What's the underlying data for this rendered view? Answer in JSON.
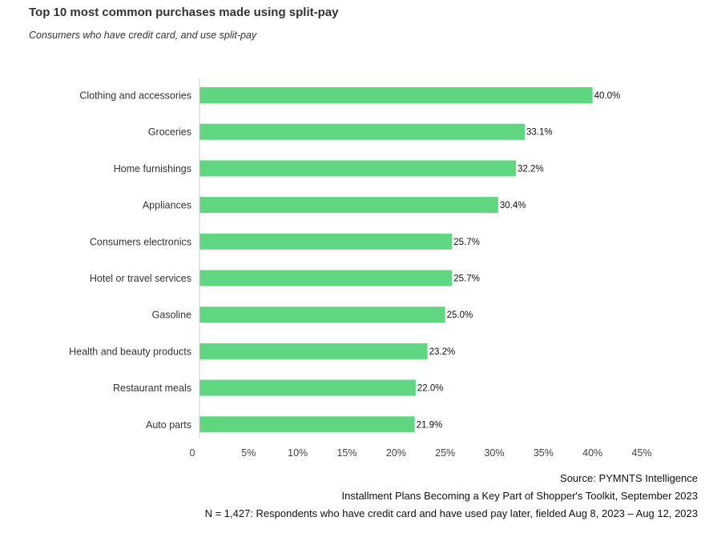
{
  "header": {
    "title": "Top 10 most common purchases made using split-pay",
    "subtitle": "Consumers who have credit card, and use split-pay"
  },
  "chart_data": {
    "type": "bar",
    "orientation": "horizontal",
    "categories": [
      "Clothing and accessories",
      "Groceries",
      "Home furnishings",
      "Appliances",
      "Consumers electronics",
      "Hotel or travel services",
      "Gasoline",
      "Health and beauty products",
      "Restaurant meals",
      "Auto parts"
    ],
    "values": [
      40.0,
      33.1,
      32.2,
      30.4,
      25.7,
      25.7,
      25.0,
      23.2,
      22.0,
      21.9
    ],
    "value_labels": [
      "40.0%",
      "33.1%",
      "32.2%",
      "30.4%",
      "25.7%",
      "25.7%",
      "25.0%",
      "23.2%",
      "22.0%",
      "21.9%"
    ],
    "x_ticks": [
      0,
      5,
      10,
      15,
      20,
      25,
      30,
      35,
      40,
      45
    ],
    "x_tick_labels": [
      "0",
      "5%",
      "10%",
      "15%",
      "20%",
      "25%",
      "30%",
      "35%",
      "40%",
      "45%"
    ],
    "xlim": [
      0,
      45
    ],
    "grid": false,
    "bar_color": "#5fd67f"
  },
  "footer": {
    "source": "Source: PYMNTS Intelligence",
    "report": "Installment Plans Becoming a Key Part of Shopper's Toolkit, September 2023",
    "note": "N = 1,427: Respondents who have credit card and have used pay later, fielded Aug 8, 2023 – Aug 12, 2023"
  }
}
